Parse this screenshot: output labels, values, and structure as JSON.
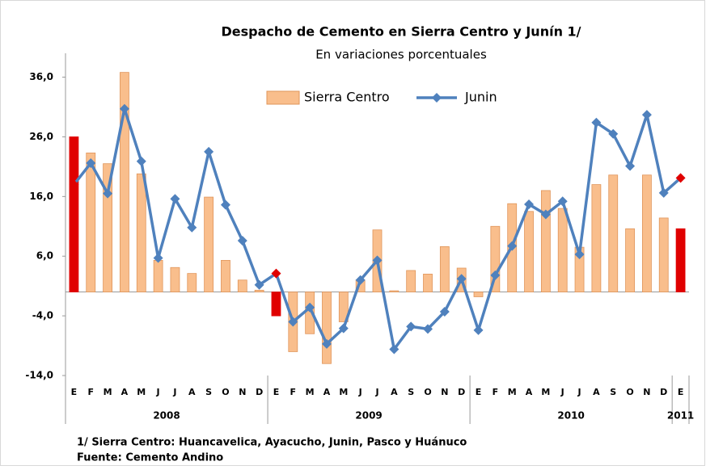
{
  "chart_data": {
    "type": "bar_line",
    "title": "Despacho de Cemento en Sierra Centro y Junín 1/",
    "subtitle": "En variaciones porcentuales",
    "categories": [
      "E",
      "F",
      "M",
      "A",
      "M",
      "J",
      "J",
      "A",
      "S",
      "O",
      "N",
      "D",
      "E",
      "F",
      "M",
      "A",
      "M",
      "J",
      "J",
      "A",
      "S",
      "O",
      "N",
      "D",
      "E",
      "F",
      "M",
      "A",
      "M",
      "J",
      "J",
      "A",
      "S",
      "O",
      "N",
      "D",
      "E"
    ],
    "groups": [
      "2008",
      "2009",
      "2010",
      "2011"
    ],
    "series": [
      {
        "name": "Sierra Centro",
        "kind": "bar",
        "color": "#f9be8c",
        "edge": "#e0955a",
        "point_colors": [
          "#e00000",
          "#f9be8c",
          "#f9be8c",
          "#f9be8c",
          "#f9be8c",
          "#f9be8c",
          "#f9be8c",
          "#f9be8c",
          "#f9be8c",
          "#f9be8c",
          "#f9be8c",
          "#f9be8c",
          "#e00000",
          "#f9be8c",
          "#f9be8c",
          "#f9be8c",
          "#f9be8c",
          "#f9be8c",
          "#f9be8c",
          "#f9be8c",
          "#f9be8c",
          "#f9be8c",
          "#f9be8c",
          "#f9be8c",
          "#f9be8c",
          "#f9be8c",
          "#f9be8c",
          "#f9be8c",
          "#f9be8c",
          "#f9be8c",
          "#f9be8c",
          "#f9be8c",
          "#f9be8c",
          "#f9be8c",
          "#f9be8c",
          "#f9be8c",
          "#e00000"
        ],
        "values": [
          26.0,
          23.3,
          21.5,
          36.8,
          19.8,
          5.3,
          4.1,
          3.1,
          15.9,
          5.3,
          2.0,
          0.3,
          -4.0,
          -10.0,
          -7.0,
          -12.0,
          -5.0,
          2.0,
          10.4,
          0.2,
          3.6,
          3.0,
          7.6,
          4.0,
          -0.8,
          11.0,
          14.8,
          13.5,
          17.0,
          14.0,
          7.5,
          18.0,
          19.6,
          10.6,
          19.6,
          12.4,
          10.6
        ]
      },
      {
        "name": "Junin",
        "kind": "line",
        "color": "#4f81bd",
        "point_colors": [
          "#e00000",
          "#4f81bd",
          "#4f81bd",
          "#4f81bd",
          "#4f81bd",
          "#4f81bd",
          "#4f81bd",
          "#4f81bd",
          "#4f81bd",
          "#4f81bd",
          "#4f81bd",
          "#4f81bd",
          "#e00000",
          "#4f81bd",
          "#4f81bd",
          "#4f81bd",
          "#4f81bd",
          "#4f81bd",
          "#4f81bd",
          "#4f81bd",
          "#4f81bd",
          "#4f81bd",
          "#4f81bd",
          "#4f81bd",
          "#4f81bd",
          "#4f81bd",
          "#4f81bd",
          "#4f81bd",
          "#4f81bd",
          "#4f81bd",
          "#4f81bd",
          "#4f81bd",
          "#4f81bd",
          "#4f81bd",
          "#4f81bd",
          "#4f81bd",
          "#e00000"
        ],
        "values": [
          18.0,
          21.6,
          16.5,
          30.7,
          21.9,
          5.7,
          15.6,
          10.8,
          23.5,
          14.6,
          8.6,
          1.2,
          3.1,
          -5.0,
          -2.6,
          -8.7,
          -6.1,
          2.0,
          5.3,
          -9.6,
          -5.8,
          -6.2,
          -3.3,
          2.2,
          -6.4,
          2.8,
          7.7,
          14.7,
          13.0,
          15.2,
          6.3,
          28.4,
          26.5,
          21.1,
          29.7,
          16.6,
          19.1
        ]
      }
    ],
    "ylim": [
      -14,
      40
    ],
    "yticks": [
      {
        "value": 36,
        "label": "36,0"
      },
      {
        "value": 26,
        "label": "26,0"
      },
      {
        "value": 16,
        "label": "16,0"
      },
      {
        "value": 6,
        "label": "6,0"
      },
      {
        "value": -4,
        "label": "-4,0"
      },
      {
        "value": -14,
        "label": "-14,0"
      }
    ],
    "legend": "top",
    "notes": [
      "1/ Sierra Centro: Huancavelica,  Ayacucho, Junin, Pasco y Huánuco",
      "Fuente: Cemento Andino"
    ]
  }
}
